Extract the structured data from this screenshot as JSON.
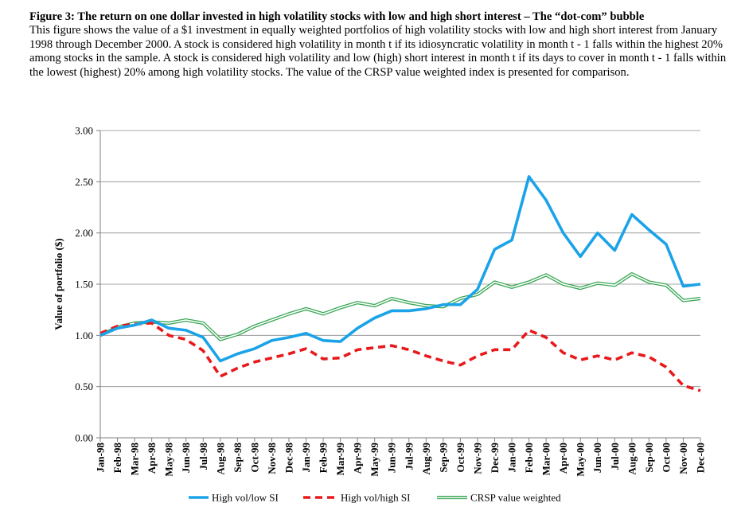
{
  "figure": {
    "title": "Figure 3: The return on one dollar invested in high volatility stocks with low and high short interest – The “dot-com” bubble",
    "description": "This figure shows the value of a $1 investment in equally weighted portfolios of high volatility stocks with low and high short interest from January 1998 through December 2000. A stock is considered high volatility in month t if its idiosyncratic volatility in month t - 1 falls within the highest 20% among stocks in the sample. A stock is considered high volatility and low (high) short interest in month t if its days to cover in month t - 1 falls within the lowest (highest) 20% among high volatility stocks. The value of the CRSP value weighted index is presented for comparison."
  },
  "chart_data": {
    "type": "line",
    "title": "",
    "xlabel": "",
    "ylabel": "Value of portfolio ($)",
    "ylim": [
      0,
      3
    ],
    "yticks": [
      "0.00",
      "0.50",
      "1.00",
      "1.50",
      "2.00",
      "2.50",
      "3.00"
    ],
    "ytick_values": [
      0,
      0.5,
      1,
      1.5,
      2,
      2.5,
      3
    ],
    "grid": "horizontal",
    "legend_position": "bottom",
    "categories": [
      "Jan-98",
      "Feb-98",
      "Mar-98",
      "Apr-98",
      "May-98",
      "Jun-98",
      "Jul-98",
      "Aug-98",
      "Sep-98",
      "Oct-98",
      "Nov-98",
      "Dec-98",
      "Jan-99",
      "Feb-99",
      "Mar-99",
      "Apr-99",
      "May-99",
      "Jun-99",
      "Jul-99",
      "Aug-99",
      "Sep-99",
      "Oct-99",
      "Nov-99",
      "Dec-99",
      "Jan-00",
      "Feb-00",
      "Mar-00",
      "Apr-00",
      "May-00",
      "Jun-00",
      "Jul-00",
      "Aug-00",
      "Sep-00",
      "Oct-00",
      "Nov-00",
      "Dec-00"
    ],
    "series": [
      {
        "name": "High vol/low SI",
        "color": "#1aa3e8",
        "style": "solid-thick",
        "values": [
          1.0,
          1.07,
          1.1,
          1.15,
          1.07,
          1.05,
          0.98,
          0.75,
          0.82,
          0.87,
          0.95,
          0.98,
          1.02,
          0.95,
          0.94,
          1.07,
          1.17,
          1.24,
          1.24,
          1.26,
          1.3,
          1.3,
          1.45,
          1.84,
          1.93,
          2.55,
          2.32,
          2.0,
          1.77,
          2.0,
          1.83,
          2.18,
          2.03,
          1.89,
          1.48,
          1.5
        ]
      },
      {
        "name": "High vol/high SI",
        "color": "#e8191b",
        "style": "dashed",
        "values": [
          1.02,
          1.09,
          1.11,
          1.12,
          1.0,
          0.96,
          0.85,
          0.6,
          0.68,
          0.74,
          0.78,
          0.82,
          0.87,
          0.77,
          0.78,
          0.86,
          0.88,
          0.9,
          0.86,
          0.8,
          0.75,
          0.71,
          0.8,
          0.86,
          0.86,
          1.05,
          0.98,
          0.83,
          0.76,
          0.8,
          0.76,
          0.83,
          0.79,
          0.69,
          0.51,
          0.46
        ]
      },
      {
        "name": "CRSP value weighted",
        "color": "#3aa655",
        "style": "double",
        "values": [
          1.0,
          1.08,
          1.12,
          1.13,
          1.12,
          1.15,
          1.12,
          0.96,
          1.01,
          1.09,
          1.15,
          1.21,
          1.26,
          1.21,
          1.27,
          1.32,
          1.29,
          1.36,
          1.32,
          1.29,
          1.28,
          1.36,
          1.4,
          1.52,
          1.47,
          1.52,
          1.59,
          1.5,
          1.46,
          1.51,
          1.49,
          1.6,
          1.52,
          1.49,
          1.34,
          1.36
        ]
      }
    ]
  }
}
